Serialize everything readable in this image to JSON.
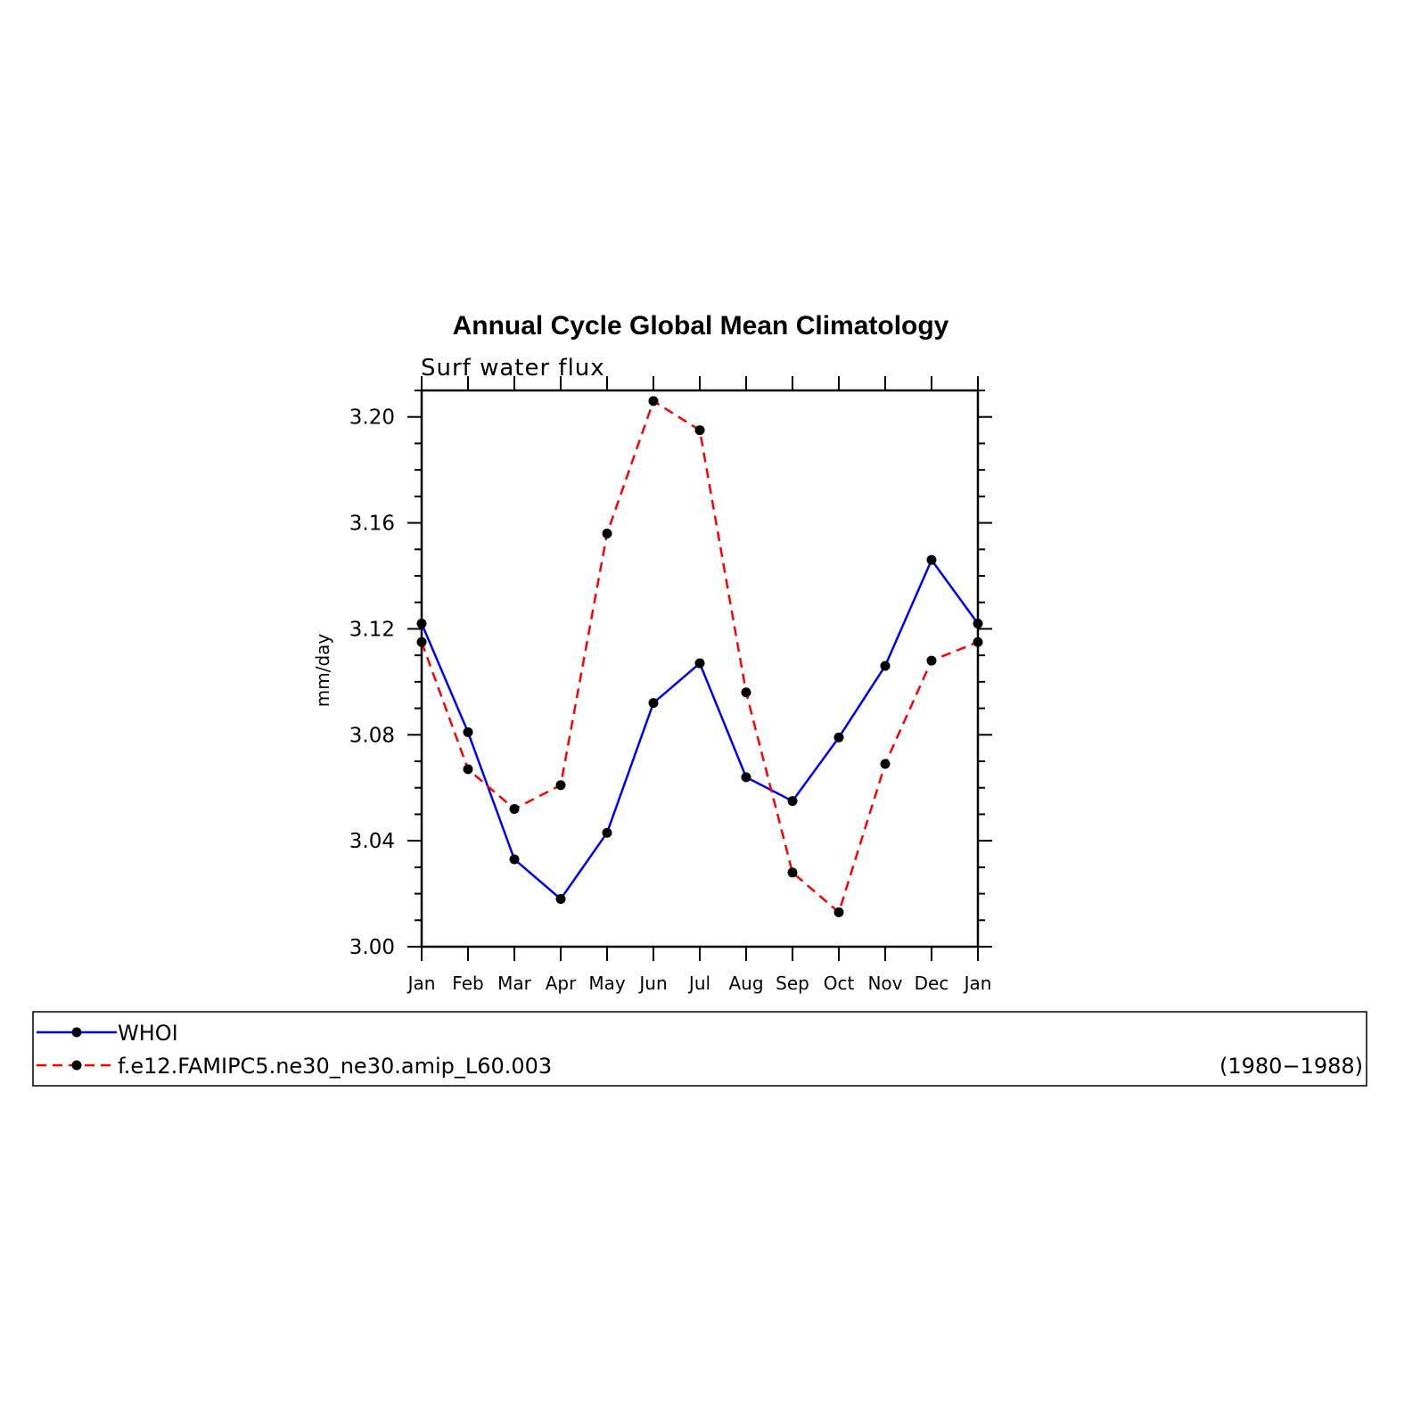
{
  "chart_data": {
    "type": "line",
    "title": "Annual Cycle Global Mean Climatology",
    "subtitle": "Surf water flux",
    "xlabel": "",
    "ylabel": "mm/day",
    "categories": [
      "Jan",
      "Feb",
      "Mar",
      "Apr",
      "May",
      "Jun",
      "Jul",
      "Aug",
      "Sep",
      "Oct",
      "Nov",
      "Dec",
      "Jan"
    ],
    "ylim": [
      3.0,
      3.21
    ],
    "yticks": [
      3.0,
      3.04,
      3.08,
      3.12,
      3.16,
      3.2
    ],
    "ytick_labels": [
      "3.00",
      "3.04",
      "3.08",
      "3.12",
      "3.16",
      "3.20"
    ],
    "grid": false,
    "legend_position": "bottom",
    "series": [
      {
        "name": "WHOI",
        "color": "#0000ff",
        "line_style": "solid",
        "marker": "dot",
        "values": [
          3.122,
          3.081,
          3.033,
          3.018,
          3.043,
          3.092,
          3.107,
          3.064,
          3.055,
          3.079,
          3.106,
          3.146,
          3.122
        ]
      },
      {
        "name": "f.e12.FAMIPC5.ne30_ne30.amip_L60.003",
        "color": "#ff0000",
        "line_style": "dashed",
        "marker": "dot",
        "values": [
          3.115,
          3.067,
          3.052,
          3.061,
          3.156,
          3.206,
          3.195,
          3.096,
          3.028,
          3.013,
          3.069,
          3.108,
          3.115
        ]
      }
    ],
    "legend_note": "(1980−1988)"
  }
}
